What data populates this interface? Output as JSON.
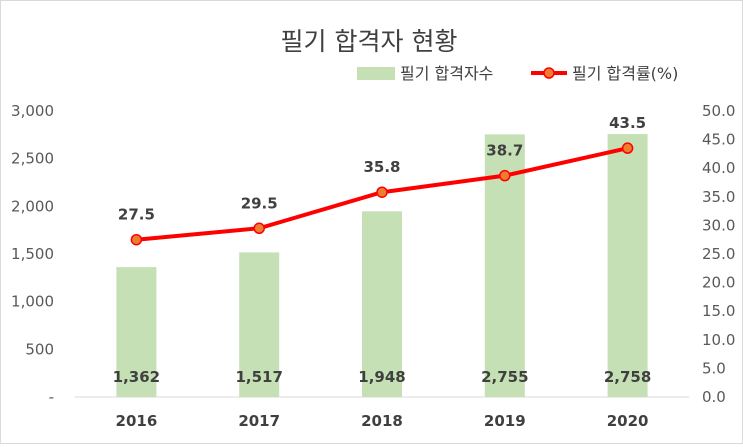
{
  "chart_data": {
    "type": "bar",
    "title": "필기 합격자 현황",
    "categories": [
      "2016",
      "2017",
      "2018",
      "2019",
      "2020"
    ],
    "series": [
      {
        "name": "필기 합격자수",
        "type": "bar",
        "axis": "left",
        "values": [
          1362,
          1517,
          1948,
          2755,
          2758
        ],
        "labels": [
          "1,362",
          "1,517",
          "1,948",
          "2,755",
          "2,758"
        ],
        "color": "#c5e0b4"
      },
      {
        "name": "필기 합격률(%)",
        "type": "line",
        "axis": "right",
        "values": [
          27.5,
          29.5,
          35.8,
          38.7,
          43.5
        ],
        "labels": [
          "27.5",
          "29.5",
          "35.8",
          "38.7",
          "43.5"
        ],
        "color": "#ff0000",
        "marker_color": "#ed7d31"
      }
    ],
    "y_left": {
      "ylim": [
        0,
        3000
      ],
      "ticks": [
        0,
        500,
        1000,
        1500,
        2000,
        2500,
        3000
      ],
      "tick_labels": [
        "-",
        "500",
        "1,000",
        "1,500",
        "2,000",
        "2,500",
        "3,000"
      ]
    },
    "y_right": {
      "ylim": [
        0,
        50
      ],
      "ticks": [
        0,
        5,
        10,
        15,
        20,
        25,
        30,
        35,
        40,
        45,
        50
      ],
      "tick_labels": [
        "0.0",
        "5.0",
        "10.0",
        "15.0",
        "20.0",
        "25.0",
        "30.0",
        "35.0",
        "40.0",
        "45.0",
        "50.0"
      ]
    },
    "grid": false,
    "legend": "top-right"
  }
}
